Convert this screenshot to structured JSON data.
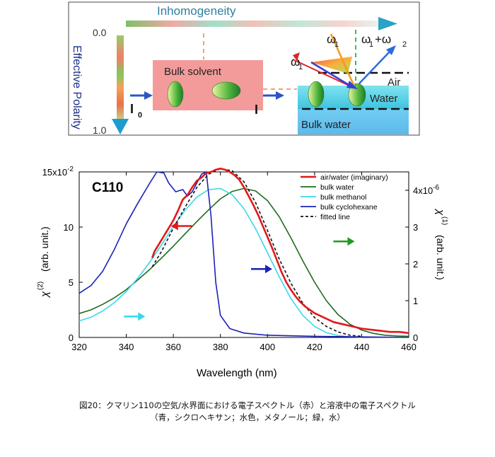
{
  "schematic": {
    "inhomogeneity_label": "Inhomogeneity",
    "polarity_label": "Effective Polarity",
    "polarity_top": "0.0",
    "polarity_bottom": "1.0",
    "bulk_solvent_label": "Bulk solvent",
    "i0_label": "I",
    "i0_sub": "0",
    "i_label": "I",
    "omega1_left": "ω",
    "omega1_left_sub": "1",
    "omega1_mid": "ω",
    "omega1_mid_sub": "1",
    "sum_label_a": "ω",
    "sum_label_a_sub": "1",
    "sum_plus": "+ω",
    "sum_label_b_sub": "2",
    "air_label": "Air",
    "water_label": "Water",
    "bulk_water_label": "Bulk water",
    "colors": {
      "bulk_box": "#f39b9b",
      "water_band": "#5fd0e6",
      "bulk_water": "#6cc5f0",
      "arrow_blue": "#2a7fd0"
    }
  },
  "chart_data": {
    "type": "line",
    "sample_label": "C110",
    "xlabel": "Wavelength (nm)",
    "ylabel_left": "χ(2) (arb. unit.)",
    "ylabel_left_symbol": "χ",
    "ylabel_left_sup": "(2)",
    "ylabel_left_unit": "(arb. unit.)",
    "ylabel_right_symbol": "χ",
    "ylabel_right_sup": "(1)",
    "ylabel_right_unit": "(arb. unit.)",
    "xlim": [
      320,
      460
    ],
    "ylim_left": [
      0,
      0.15
    ],
    "ylim_right": [
      0,
      4.5e-06
    ],
    "x_ticks": [
      "320",
      "340",
      "360",
      "380",
      "400",
      "420",
      "440",
      "460"
    ],
    "y_left_ticks": [
      "0",
      "5",
      "10",
      "15x10-2"
    ],
    "y_left_tick_values": [
      0,
      0.05,
      0.1,
      0.15
    ],
    "y_right_ticks": [
      "0",
      "1",
      "2",
      "3",
      "4x10-6"
    ],
    "y_right_tick_values": [
      0,
      1e-06,
      2e-06,
      3e-06,
      4e-06
    ],
    "legend_position": "top-right",
    "series": [
      {
        "name": "air/water (imaginary)",
        "axis": "left",
        "color": "#e0191b",
        "dash": "",
        "x": [
          351,
          352,
          354,
          356,
          358,
          360,
          362,
          364,
          366,
          368,
          370,
          372,
          374,
          376,
          378,
          380,
          382,
          384,
          386,
          388,
          390,
          392,
          394,
          396,
          398,
          400,
          402,
          404,
          406,
          408,
          410,
          412,
          414,
          416,
          418,
          420,
          424,
          428,
          432,
          436,
          440,
          444,
          448,
          452,
          456,
          460
        ],
        "values": [
          0.072,
          0.078,
          0.085,
          0.092,
          0.099,
          0.106,
          0.115,
          0.125,
          0.129,
          0.136,
          0.142,
          0.145,
          0.149,
          0.15,
          0.152,
          0.153,
          0.152,
          0.15,
          0.147,
          0.143,
          0.136,
          0.128,
          0.12,
          0.111,
          0.101,
          0.091,
          0.081,
          0.07,
          0.059,
          0.05,
          0.043,
          0.037,
          0.032,
          0.028,
          0.025,
          0.022,
          0.018,
          0.014,
          0.012,
          0.01,
          0.008,
          0.007,
          0.006,
          0.005,
          0.005,
          0.004
        ]
      },
      {
        "name": "bulk water",
        "axis": "right",
        "color": "#1e6b1e",
        "dash": "",
        "x": [
          320,
          325,
          330,
          335,
          340,
          345,
          350,
          355,
          360,
          365,
          370,
          375,
          380,
          385,
          390,
          395,
          400,
          405,
          410,
          415,
          420,
          425,
          430,
          435,
          440,
          445,
          450,
          455,
          460
        ],
        "values": [
          6.5e-07,
          7.5e-07,
          9e-07,
          1.08e-06,
          1.3e-06,
          1.57e-06,
          1.85e-06,
          2.16e-06,
          2.48e-06,
          2.82e-06,
          3.15e-06,
          3.47e-06,
          3.77e-06,
          3.97e-06,
          4.05e-06,
          3.98e-06,
          3.72e-06,
          3.28e-06,
          2.7e-06,
          2.08e-06,
          1.5e-06,
          1e-06,
          6.2e-07,
          3.6e-07,
          2e-07,
          1.1e-07,
          6e-08,
          4e-08,
          3e-08
        ]
      },
      {
        "name": "bulk methanol",
        "axis": "right",
        "color": "#3ad7e6",
        "dash": "",
        "x": [
          320,
          325,
          330,
          335,
          340,
          345,
          350,
          355,
          360,
          365,
          370,
          375,
          380,
          385,
          390,
          395,
          400,
          405,
          410,
          415,
          420,
          425,
          430,
          435,
          440
        ],
        "values": [
          4.5e-07,
          5.5e-07,
          7.2e-07,
          9.5e-07,
          1.25e-06,
          1.62e-06,
          2.05e-06,
          2.52e-06,
          3.02e-06,
          3.46e-06,
          3.82e-06,
          4.02e-06,
          4.05e-06,
          3.88e-06,
          3.5e-06,
          2.95e-06,
          2.3e-06,
          1.65e-06,
          1.05e-06,
          6e-07,
          3e-07,
          1.3e-07,
          5e-08,
          2e-08,
          1e-08
        ]
      },
      {
        "name": "bulk cyclohexane",
        "axis": "left",
        "color": "#1b22b8",
        "dash": "",
        "x": [
          320,
          325,
          330,
          335,
          340,
          345,
          350,
          353,
          356,
          358,
          361,
          364,
          366,
          368,
          370,
          372,
          374,
          376,
          378,
          380,
          384,
          390,
          400,
          420,
          440,
          460
        ],
        "values": [
          0.04,
          0.047,
          0.06,
          0.08,
          0.103,
          0.122,
          0.14,
          0.15,
          0.149,
          0.14,
          0.132,
          0.134,
          0.128,
          0.132,
          0.14,
          0.148,
          0.15,
          0.11,
          0.05,
          0.02,
          0.008,
          0.004,
          0.002,
          0.001,
          0.0005,
          0.0
        ]
      },
      {
        "name": "fitted line",
        "axis": "left",
        "color": "#111111",
        "dash": "4,3",
        "x": [
          351,
          355,
          360,
          365,
          370,
          375,
          380,
          385,
          390,
          395,
          400,
          405,
          410,
          415,
          420,
          425,
          430,
          435,
          440
        ],
        "values": [
          0.064,
          0.078,
          0.099,
          0.118,
          0.136,
          0.148,
          0.153,
          0.151,
          0.141,
          0.122,
          0.097,
          0.071,
          0.049,
          0.031,
          0.018,
          0.01,
          0.005,
          0.002,
          0.001
        ]
      }
    ],
    "annotation_arrows": [
      {
        "x": 368,
        "y": 0.101,
        "dir": "left",
        "color": "#e0191b"
      },
      {
        "x": 393,
        "y": 0.062,
        "dir": "right",
        "color": "#1b22b8"
      },
      {
        "x": 428,
        "y": 0.087,
        "dir": "right",
        "color": "#1e9b1e"
      },
      {
        "x": 339,
        "y": 0.019,
        "dir": "right",
        "color": "#3ad7e6"
      }
    ]
  },
  "caption": {
    "line1": "図20：クマリン110の空気/水界面における電子スペクトル（赤）と溶液中の電子スペクトル",
    "line2": "（青，シクロヘキサン；水色，メタノール；緑，水）"
  }
}
